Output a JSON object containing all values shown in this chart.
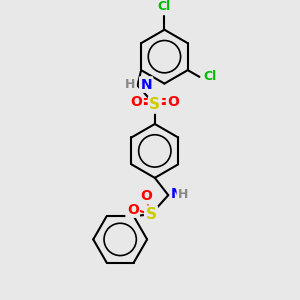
{
  "bg_color": "#e8e8e8",
  "bond_color": "#000000",
  "bond_lw": 1.5,
  "atom_colors": {
    "N": "#0000FF",
    "O": "#FF0000",
    "S": "#CCCC00",
    "Cl": "#00BB00",
    "H": "#888888"
  },
  "font_size": 8,
  "figsize": [
    3.0,
    3.0
  ],
  "dpi": 100
}
